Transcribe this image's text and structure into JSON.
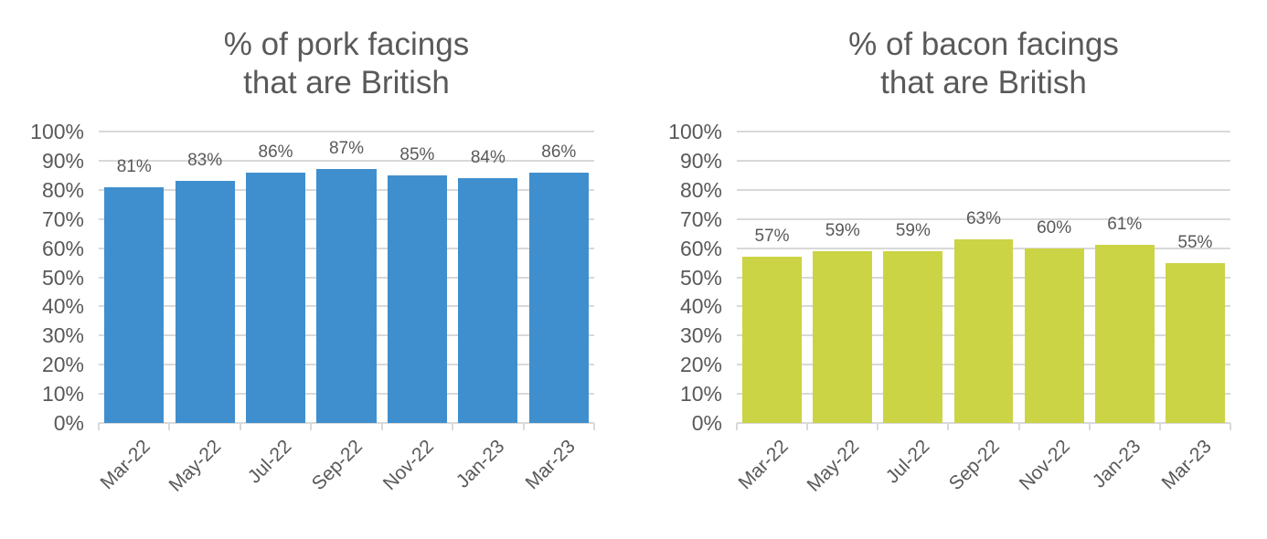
{
  "chart_data": [
    {
      "type": "bar",
      "title": "% of pork facings\nthat are British",
      "categories": [
        "Mar-22",
        "May-22",
        "Jul-22",
        "Sep-22",
        "Nov-22",
        "Jan-23",
        "Mar-23"
      ],
      "values": [
        81,
        83,
        86,
        87,
        85,
        84,
        86
      ],
      "data_labels": [
        "81%",
        "83%",
        "86%",
        "87%",
        "85%",
        "84%",
        "86%"
      ],
      "xlabel": "",
      "ylabel": "",
      "ylim": [
        0,
        100
      ],
      "yticks": [
        "0%",
        "10%",
        "20%",
        "30%",
        "40%",
        "50%",
        "60%",
        "70%",
        "80%",
        "90%",
        "100%"
      ],
      "grid": true,
      "legend": "none",
      "color": "#3f8fce"
    },
    {
      "type": "bar",
      "title": "% of bacon facings\nthat are British",
      "categories": [
        "Mar-22",
        "May-22",
        "Jul-22",
        "Sep-22",
        "Nov-22",
        "Jan-23",
        "Mar-23"
      ],
      "values": [
        57,
        59,
        59,
        63,
        60,
        61,
        55
      ],
      "data_labels": [
        "57%",
        "59%",
        "59%",
        "63%",
        "60%",
        "61%",
        "55%"
      ],
      "xlabel": "",
      "ylabel": "",
      "ylim": [
        0,
        100
      ],
      "yticks": [
        "0%",
        "10%",
        "20%",
        "30%",
        "40%",
        "50%",
        "60%",
        "70%",
        "80%",
        "90%",
        "100%"
      ],
      "grid": true,
      "legend": "none",
      "color": "#cbd444"
    }
  ]
}
